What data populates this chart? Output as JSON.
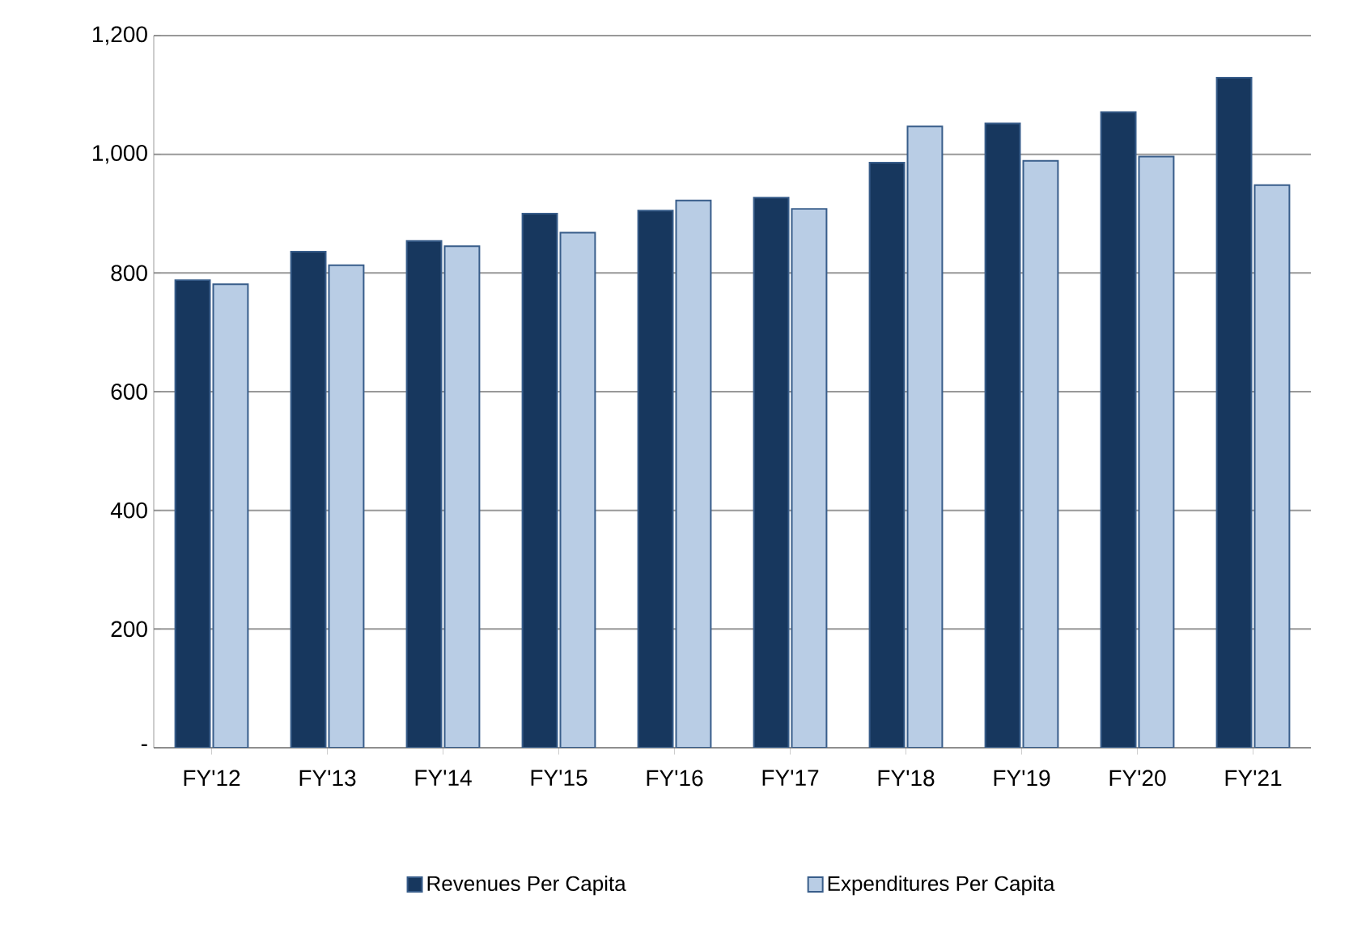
{
  "chart_data": {
    "type": "bar",
    "categories": [
      "FY'12",
      "FY'13",
      "FY'14",
      "FY'15",
      "FY'16",
      "FY'17",
      "FY'18",
      "FY'19",
      "FY'20",
      "FY'21"
    ],
    "series": [
      {
        "name": "Revenues Per Capita",
        "color": "#17375e",
        "values": [
          788,
          836,
          854,
          900,
          905,
          927,
          986,
          1052,
          1071,
          1129
        ]
      },
      {
        "name": "Expenditures Per Capita",
        "color": "#b9cde5",
        "values": [
          781,
          813,
          845,
          868,
          922,
          908,
          1047,
          989,
          996,
          948
        ]
      }
    ],
    "ylim": [
      0,
      1200
    ],
    "yticks": [
      {
        "value": 0,
        "label": "-"
      },
      200,
      400,
      600,
      800,
      {
        "value": 1000,
        "label": "1,000"
      },
      {
        "value": 1200,
        "label": "1,200"
      }
    ],
    "grid": "y",
    "legend": "bottom"
  }
}
